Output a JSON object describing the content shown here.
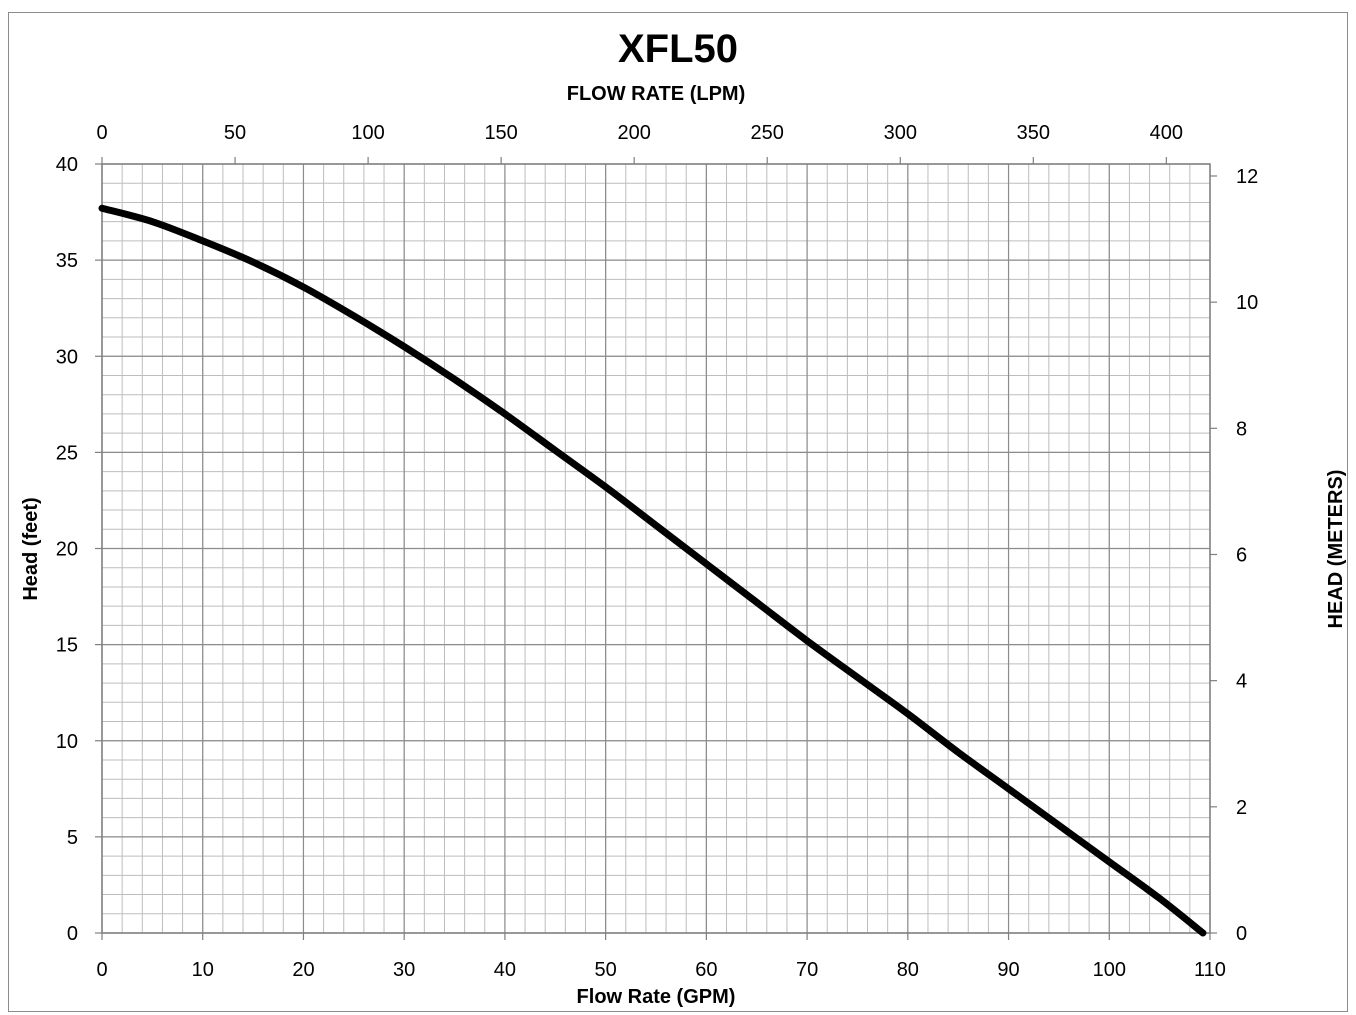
{
  "chart_data": {
    "type": "line",
    "title": "XFL50",
    "xlabel": "Flow Rate (GPM)",
    "x2label": "FLOW RATE (LPM)",
    "ylabel": "Head (feet)",
    "y2label": "HEAD (METERS)",
    "xlim": [
      0,
      110
    ],
    "x2lim": [
      0,
      416.4
    ],
    "ylim": [
      0,
      40
    ],
    "y2lim": [
      0,
      12.19
    ],
    "x_ticks": [
      0,
      10,
      20,
      30,
      40,
      50,
      60,
      70,
      80,
      90,
      100,
      110
    ],
    "x2_ticks": [
      0,
      50,
      100,
      150,
      200,
      250,
      300,
      350,
      400
    ],
    "y_ticks": [
      0,
      5,
      10,
      15,
      20,
      25,
      30,
      35,
      40
    ],
    "y2_ticks": [
      0,
      2,
      4,
      6,
      8,
      10,
      12
    ],
    "x_minor_step": 2,
    "y_minor_step": 1,
    "grid": true,
    "series": [
      {
        "color": "#000000",
        "x": [
          0,
          5,
          10,
          15,
          20,
          25,
          30,
          35,
          40,
          45,
          50,
          55,
          60,
          65,
          70,
          75,
          80,
          85,
          90,
          95,
          100,
          105,
          109.3
        ],
        "y": [
          37.7,
          37.0,
          36.0,
          34.9,
          33.6,
          32.1,
          30.5,
          28.8,
          27.0,
          25.1,
          23.2,
          21.2,
          19.2,
          17.2,
          15.2,
          13.3,
          11.4,
          9.4,
          7.5,
          5.6,
          3.7,
          1.8,
          0
        ]
      }
    ]
  }
}
